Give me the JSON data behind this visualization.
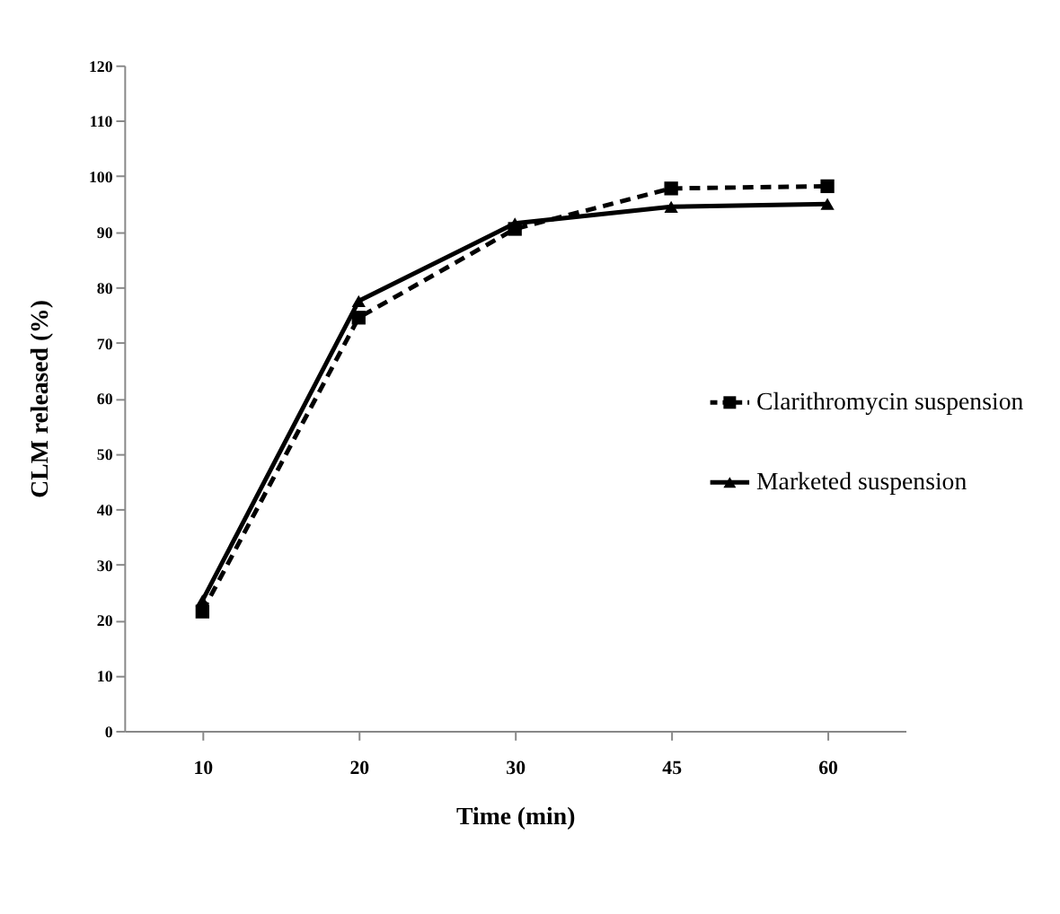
{
  "chart_data": {
    "type": "line",
    "xlabel": "Time (min)",
    "ylabel": "CLM  released  (%)",
    "categories": [
      "10",
      "20",
      "30",
      "45",
      "60"
    ],
    "ylim": [
      0,
      120
    ],
    "yticks": [
      0,
      10,
      20,
      30,
      40,
      50,
      60,
      70,
      80,
      90,
      100,
      110,
      120
    ],
    "grid": false,
    "legend": "right",
    "series": [
      {
        "name": "Clarithromycin suspension",
        "color": "#000000",
        "line_style": "dashed",
        "marker": "square",
        "values": [
          21.5,
          74.5,
          90.5,
          97.8,
          98.2
        ]
      },
      {
        "name": "Marketed suspension",
        "color": "#000000",
        "line_style": "solid",
        "marker": "triangle",
        "values": [
          23.5,
          77.5,
          91.5,
          94.5,
          95.0
        ]
      }
    ]
  }
}
